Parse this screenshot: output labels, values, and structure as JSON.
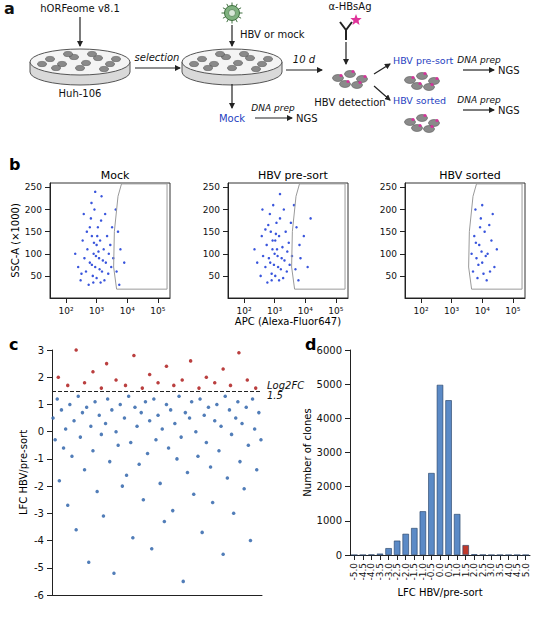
{
  "diagram": {
    "panel": "a",
    "library": "hORFeome v8.1",
    "cells": "Huh-106",
    "selection": "selection",
    "infection": "HBV or mock",
    "incubation": "10 d",
    "antibody": "α-HBsAg",
    "detection": "HBV detection",
    "branches": [
      {
        "label": "Mock",
        "prep": "DNA prep",
        "readout": "NGS"
      },
      {
        "label": "HBV pre-sort",
        "prep": "DNA prep",
        "readout": "NGS"
      },
      {
        "label": "HBV sorted",
        "prep": "DNA prep",
        "readout": "NGS"
      }
    ]
  },
  "chart_data": [
    {
      "panel": "b",
      "type": "scatter",
      "title": "Mock",
      "ylabel": "SSC-A (×1000)",
      "log": "x",
      "grid": false,
      "xlim": [
        30,
        250000
      ],
      "xticks": [
        {
          "value": 100,
          "label": "10²"
        },
        {
          "value": 1000,
          "label": "10³"
        },
        {
          "value": 10000,
          "label": "10⁴"
        },
        {
          "value": 100000,
          "label": "10⁵"
        }
      ],
      "ylim": [
        0,
        260
      ],
      "yticks": [
        50,
        100,
        150,
        200,
        250
      ],
      "series": [
        {
          "type": "scatter",
          "color": "#2343d8",
          "marker": "circle",
          "x": [
            300,
            450,
            600,
            800,
            1000,
            1200,
            700,
            500,
            900,
            1500,
            2000,
            1100,
            650,
            400,
            350,
            550,
            750,
            1300,
            1700,
            2500,
            3000,
            850,
            1000,
            1400,
            600,
            250,
            2200,
            1800,
            950,
            1150,
            700,
            1600,
            1250,
            480,
            820,
            1050,
            2800,
            3500,
            4500,
            6000,
            5000,
            380,
            1900,
            2400,
            780,
            1350,
            200,
            3200,
            1450,
            680,
            5500,
            4200,
            8000,
            320,
            900
          ],
          "values": [
            40,
            60,
            80,
            100,
            120,
            90,
            140,
            110,
            70,
            60,
            80,
            160,
            180,
            90,
            130,
            30,
            50,
            130,
            110,
            100,
            70,
            200,
            45,
            175,
            160,
            70,
            140,
            40,
            95,
            105,
            75,
            85,
            65,
            150,
            125,
            140,
            120,
            90,
            60,
            110,
            150,
            190,
            190,
            55,
            35,
            35,
            100,
            160,
            230,
            215,
            30,
            200,
            80,
            55,
            240
          ]
        },
        {
          "type": "line",
          "color": "#9a9a9a",
          "line_style": "solid",
          "x": [
            4500,
            3600,
            3800,
            5000,
            6500,
            200000,
            200000,
            4500
          ],
          "values": [
            20,
            70,
            150,
            230,
            258,
            258,
            20,
            20
          ]
        }
      ]
    },
    {
      "type": "scatter",
      "title": "HBV pre-sort",
      "xlabel": "APC (Alexa-Fluor647)",
      "log": "x",
      "grid": false,
      "xlim": [
        30,
        250000
      ],
      "xticks": [
        {
          "value": 100,
          "label": "10²"
        },
        {
          "value": 1000,
          "label": "10³"
        },
        {
          "value": 10000,
          "label": "10⁴"
        },
        {
          "value": 100000,
          "label": "10⁵"
        }
      ],
      "ylim": [
        0,
        260
      ],
      "yticks": [
        50,
        100,
        150,
        200,
        250
      ],
      "series": [
        {
          "type": "scatter",
          "color": "#2343d8",
          "marker": "circle",
          "x": [
            350,
            500,
            650,
            850,
            1050,
            1250,
            750,
            550,
            950,
            1600,
            2100,
            1150,
            700,
            420,
            380,
            580,
            800,
            1400,
            1800,
            2600,
            3100,
            900,
            1050,
            1500,
            620,
            270,
            2300,
            1900,
            1000,
            1200,
            720,
            1700,
            1300,
            500,
            860,
            1100,
            2900,
            3700,
            4800,
            6500,
            5200,
            400,
            2000,
            2500,
            800,
            1400,
            220,
            3400,
            7000,
            9000,
            12000,
            15000,
            6000,
            4300,
            1500
          ],
          "values": [
            50,
            70,
            90,
            110,
            130,
            95,
            150,
            120,
            75,
            65,
            85,
            170,
            190,
            95,
            140,
            35,
            55,
            140,
            115,
            105,
            75,
            210,
            50,
            180,
            165,
            80,
            150,
            45,
            100,
            110,
            80,
            90,
            70,
            155,
            130,
            145,
            125,
            95,
            65,
            120,
            160,
            200,
            200,
            60,
            40,
            40,
            110,
            170,
            90,
            140,
            70,
            180,
            40,
            210,
            235
          ]
        },
        {
          "type": "line",
          "color": "#9a9a9a",
          "line_style": "solid",
          "x": [
            4500,
            3600,
            3800,
            5000,
            6500,
            200000,
            200000,
            4500
          ],
          "values": [
            20,
            70,
            150,
            230,
            258,
            258,
            20,
            20
          ]
        }
      ]
    },
    {
      "type": "scatter",
      "title": "HBV sorted",
      "log": "x",
      "grid": false,
      "xlim": [
        30,
        250000
      ],
      "xticks": [
        {
          "value": 100,
          "label": "10²"
        },
        {
          "value": 1000,
          "label": "10³"
        },
        {
          "value": 10000,
          "label": "10⁴"
        },
        {
          "value": 100000,
          "label": "10⁵"
        }
      ],
      "ylim": [
        0,
        260
      ],
      "yticks": [
        50,
        100,
        150,
        200,
        250
      ],
      "series": [
        {
          "type": "scatter",
          "color": "#2343d8",
          "marker": "circle",
          "x": [
            5000,
            6500,
            8000,
            10000,
            12000,
            7000,
            9000,
            15000,
            20000,
            5500,
            11000,
            6000,
            13000,
            25000,
            8500,
            17000,
            30000,
            7500,
            4500,
            10000,
            14000,
            22000,
            9500,
            6200,
            18000
          ],
          "values": [
            60,
            90,
            120,
            80,
            150,
            45,
            180,
            100,
            130,
            140,
            55,
            200,
            95,
            70,
            160,
            165,
            110,
            75,
            100,
            210,
            40,
            190,
            105,
            125,
            60
          ]
        },
        {
          "type": "line",
          "color": "#9a9a9a",
          "line_style": "solid",
          "x": [
            4500,
            3600,
            3800,
            5000,
            6500,
            200000,
            200000,
            4500
          ],
          "values": [
            20,
            70,
            150,
            230,
            258,
            258,
            20,
            20
          ]
        }
      ]
    },
    {
      "panel": "c",
      "type": "scatter",
      "ylabel": "LFC HBV/pre-sort",
      "grid": false,
      "tick_labels": "y",
      "xlim": [
        0,
        20000
      ],
      "ylim": [
        -6,
        3
      ],
      "yticks": [
        -6,
        -5,
        -4,
        -3,
        -2,
        -1,
        0,
        1,
        2,
        3
      ],
      "annotations": [
        {
          "text": "Log2FC",
          "y": 1.5,
          "line_style": "dashed"
        }
      ],
      "series": [
        {
          "type": "scatter",
          "color": "#3e6fb0",
          "marker": "circle",
          "x": [
            100,
            300,
            500,
            700,
            900,
            1100,
            1300,
            1500,
            1700,
            1900,
            2100,
            2300,
            2500,
            2700,
            2900,
            3100,
            3300,
            3500,
            3700,
            3900,
            4100,
            4300,
            4500,
            4700,
            4900,
            5100,
            5300,
            5500,
            5700,
            5900,
            6100,
            6300,
            6500,
            6700,
            6900,
            7100,
            7300,
            7500,
            7700,
            7900,
            8100,
            8300,
            8500,
            8700,
            8900,
            9100,
            9300,
            9500,
            9700,
            9900,
            10100,
            10300,
            10500,
            10700,
            10900,
            11100,
            11300,
            11500,
            11700,
            11900,
            12100,
            12300,
            12500,
            12700,
            12900,
            13100,
            13300,
            13500,
            13700,
            13900,
            14100,
            14300,
            14500,
            14700,
            14900,
            15100,
            15300,
            15500,
            15700,
            15900,
            16100,
            16300,
            16500,
            16700,
            16900,
            17100,
            17300,
            17500,
            17700,
            17900,
            18100,
            18300,
            18500,
            18700,
            18900,
            19100,
            19300,
            19500,
            19700,
            19900
          ],
          "values": [
            0.5,
            -0.3,
            1.2,
            -1.8,
            0.8,
            -0.6,
            0.1,
            -2.7,
            1.0,
            -0.9,
            0.4,
            -3.6,
            1.3,
            -0.2,
            0.7,
            -1.4,
            0.9,
            -4.8,
            0.2,
            -0.7,
            1.1,
            -2.2,
            0.6,
            -0.1,
            -3.1,
            0.3,
            1.2,
            -1.1,
            0.8,
            -5.2,
            0.0,
            -0.5,
            1.0,
            -2.0,
            0.5,
            -1.6,
            1.3,
            -0.4,
            -3.9,
            0.9,
            0.2,
            -1.2,
            0.7,
            -2.5,
            1.1,
            -0.8,
            0.4,
            -4.3,
            1.2,
            -0.3,
            0.6,
            -1.9,
            0.1,
            -3.3,
            1.0,
            -0.6,
            0.8,
            -2.9,
            0.3,
            -1.0,
            1.3,
            -0.2,
            -5.5,
            0.7,
            -1.5,
            0.5,
            1.1,
            -2.3,
            0.0,
            -0.9,
            1.2,
            -3.7,
            0.6,
            -0.4,
            0.9,
            -1.3,
            -2.6,
            0.4,
            1.0,
            -0.7,
            0.2,
            -4.5,
            1.3,
            -1.7,
            0.8,
            -0.1,
            -3.0,
            0.5,
            1.1,
            -1.1,
            0.3,
            -2.1,
            0.9,
            -0.5,
            -4.0,
            1.2,
            0.1,
            -1.4,
            0.7,
            -0.3
          ]
        },
        {
          "type": "scatter",
          "color": "#b22a2a",
          "marker": "circle",
          "x": [
            600,
            1500,
            2300,
            3100,
            3900,
            4700,
            5200,
            6100,
            7000,
            7800,
            8600,
            9300,
            10100,
            10900,
            11600,
            12400,
            13200,
            14000,
            14700,
            15500,
            16300,
            17000,
            17800,
            18600,
            19400
          ],
          "values": [
            2.0,
            1.7,
            3.0,
            1.8,
            2.2,
            1.6,
            2.5,
            1.9,
            1.7,
            2.8,
            1.6,
            2.1,
            1.8,
            2.4,
            1.7,
            1.9,
            2.6,
            1.6,
            2.0,
            1.8,
            2.3,
            1.7,
            2.9,
            1.9,
            1.6
          ]
        }
      ]
    },
    {
      "panel": "d",
      "type": "bar",
      "xlabel": "LFC HBV/pre-sort",
      "ylabel": "Number of clones",
      "grid": false,
      "categories": [
        "-5.0",
        "-4.5",
        "-4.0",
        "-3.5",
        "-3.0",
        "-2.5",
        "-2.0",
        "-1.5",
        "-1.0",
        "-0.5",
        "0.0",
        "0.5",
        "1.0",
        "1.5",
        "2.0",
        "2.5",
        "3.0",
        "3.5",
        "4.0",
        "4.5",
        "5.0"
      ],
      "values": [
        0,
        0,
        10,
        40,
        200,
        420,
        620,
        790,
        1280,
        2400,
        4980,
        4530,
        1200,
        290,
        20,
        5,
        0,
        0,
        0,
        0,
        0
      ],
      "colors": [
        "#5b8ac6",
        "#5b8ac6",
        "#5b8ac6",
        "#5b8ac6",
        "#5b8ac6",
        "#5b8ac6",
        "#5b8ac6",
        "#5b8ac6",
        "#5b8ac6",
        "#5b8ac6",
        "#5b8ac6",
        "#5b8ac6",
        "#5b8ac6",
        "#c0392b",
        "#5b8ac6",
        "#5b8ac6",
        "#5b8ac6",
        "#5b8ac6",
        "#5b8ac6",
        "#5b8ac6",
        "#5b8ac6"
      ],
      "ylim": [
        0,
        6000
      ],
      "yticks": [
        0,
        1000,
        2000,
        3000,
        4000,
        5000,
        6000
      ]
    }
  ]
}
